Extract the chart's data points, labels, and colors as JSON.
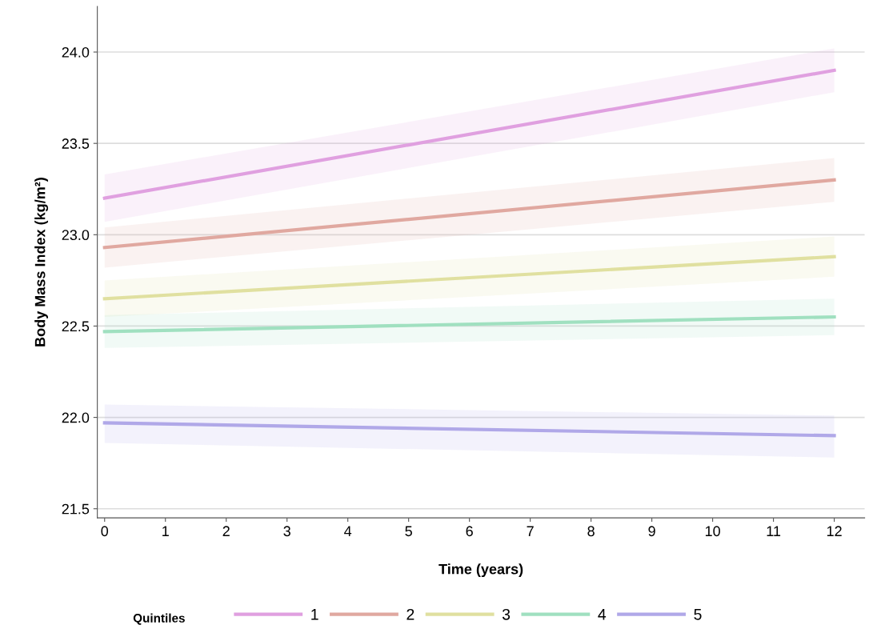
{
  "chart_data": {
    "type": "line",
    "xlabel": "Time (years)",
    "ylabel": "Body Mass Index (kg/m²)",
    "legend_title": "Quintiles",
    "x": [
      0,
      12
    ],
    "series": [
      {
        "name": "1",
        "color": "#e0a0e0",
        "values": [
          23.2,
          23.9
        ],
        "lower": [
          23.07,
          23.78
        ],
        "upper": [
          23.33,
          24.02
        ]
      },
      {
        "name": "2",
        "color": "#e0a8a0",
        "values": [
          22.93,
          23.3
        ],
        "lower": [
          22.82,
          23.18
        ],
        "upper": [
          23.04,
          23.42
        ]
      },
      {
        "name": "3",
        "color": "#e0e0a0",
        "values": [
          22.65,
          22.88
        ],
        "lower": [
          22.55,
          22.77
        ],
        "upper": [
          22.75,
          22.99
        ]
      },
      {
        "name": "4",
        "color": "#a0e0c0",
        "values": [
          22.47,
          22.55
        ],
        "lower": [
          22.38,
          22.45
        ],
        "upper": [
          22.56,
          22.65
        ]
      },
      {
        "name": "5",
        "color": "#b0a8e8",
        "values": [
          21.97,
          21.9
        ],
        "lower": [
          21.86,
          21.78
        ],
        "upper": [
          22.07,
          22.01
        ]
      }
    ],
    "xlim": [
      -0.12,
      12.5
    ],
    "ylim": [
      21.45,
      24.25
    ],
    "xticks": [
      0,
      1,
      2,
      3,
      4,
      5,
      6,
      7,
      8,
      9,
      10,
      11,
      12
    ],
    "yticks": [
      {
        "value": 21.5,
        "label": "21.5"
      },
      {
        "value": 22,
        "label": "22.0"
      },
      {
        "value": 22.5,
        "label": "22.5"
      },
      {
        "value": 23,
        "label": "23.0"
      },
      {
        "value": 23.5,
        "label": "23.5"
      },
      {
        "value": 24,
        "label": "24.0"
      }
    ],
    "grid": "y",
    "legend": "bottom",
    "marker": "none",
    "line_style": "solid"
  }
}
